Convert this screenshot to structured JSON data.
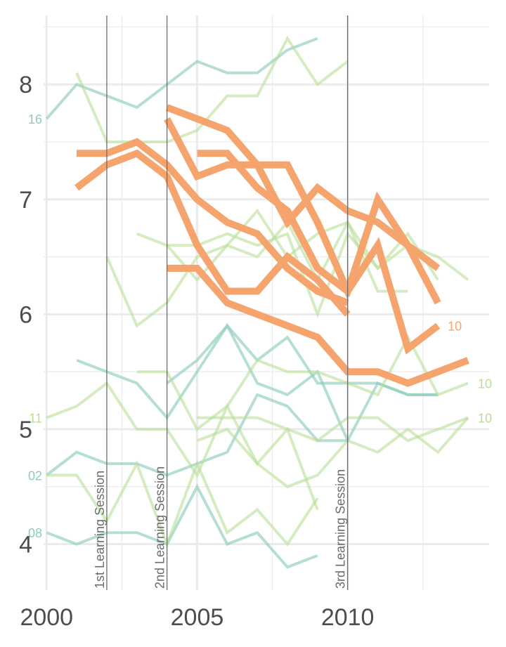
{
  "chart_data": {
    "type": "line",
    "title": "",
    "xlabel": "",
    "ylabel": "",
    "xlim": [
      1999.9,
      2014.7
    ],
    "ylim": [
      3.6,
      8.6
    ],
    "x_ticks": [
      2000,
      2005,
      2010
    ],
    "y_ticks": [
      4,
      5,
      6,
      7,
      8
    ],
    "grid": true,
    "legend": "none",
    "colors": {
      "teal": "#8ecdbd",
      "lightgreen": "#b9de96",
      "orange": "#f4a46c",
      "session_line": "#6e6e6e",
      "grid": "#ebebeb",
      "tick_text": "#4d4d4d"
    },
    "sessions": [
      {
        "x": 2002,
        "label": "1st Learning Session"
      },
      {
        "x": 2004,
        "label": "2nd Learning Session"
      },
      {
        "x": 2010,
        "label": "3rd Learning Session"
      }
    ],
    "series": [
      {
        "group": "teal",
        "x": [
          2000,
          2001,
          2002,
          2003,
          2004,
          2005,
          2006,
          2007,
          2008,
          2009
        ],
        "values": [
          7.7,
          8.0,
          7.9,
          7.8,
          8.0,
          8.2,
          8.1,
          8.1,
          8.3,
          8.4
        ],
        "end_label": "16"
      },
      {
        "group": "teal",
        "x": [
          2000,
          2001,
          2002,
          2003,
          2004,
          2005,
          2006,
          2007,
          2008,
          2009,
          2010,
          2011,
          2012,
          2013
        ],
        "values": [
          4.6,
          4.8,
          4.7,
          4.7,
          4.6,
          4.7,
          4.8,
          5.3,
          5.2,
          4.9,
          4.9,
          5.4,
          5.3,
          5.3
        ],
        "end_label": "02"
      },
      {
        "group": "teal",
        "x": [
          2000,
          2001,
          2002,
          2003,
          2004,
          2005,
          2006,
          2007,
          2008,
          2009
        ],
        "values": [
          4.1,
          4.0,
          4.1,
          4.1,
          4.0,
          4.5,
          4.0,
          4.1,
          3.8,
          3.9
        ],
        "end_label": "08"
      },
      {
        "group": "teal",
        "x": [
          2001,
          2002,
          2003,
          2004,
          2005,
          2006,
          2007,
          2008,
          2009,
          2010
        ],
        "values": [
          5.6,
          5.5,
          5.4,
          5.1,
          5.5,
          5.9,
          5.4,
          5.3,
          5.5,
          4.9
        ]
      },
      {
        "group": "teal",
        "x": [
          2004,
          2005,
          2006,
          2007,
          2008,
          2009,
          2010,
          2011,
          2012,
          2013
        ],
        "values": [
          5.4,
          5.6,
          5.9,
          5.6,
          5.8,
          5.4,
          5.4,
          5.4,
          5.3,
          5.3
        ]
      },
      {
        "group": "lightgreen",
        "x": [
          2000,
          2001,
          2002,
          2003,
          2004,
          2005,
          2006,
          2007,
          2008,
          2009
        ],
        "values": [
          5.1,
          5.2,
          5.4,
          5.0,
          5.0,
          4.6,
          5.2,
          4.7,
          5.0,
          4.3
        ],
        "end_label": "11"
      },
      {
        "group": "lightgreen",
        "x": [
          2000,
          2001,
          2002,
          2003,
          2004,
          2005,
          2006,
          2007,
          2008,
          2009
        ],
        "values": [
          4.6,
          4.6,
          4.2,
          4.7,
          4.0,
          4.7,
          4.1,
          4.3,
          4.0,
          4.4
        ]
      },
      {
        "group": "lightgreen",
        "x": [
          2001,
          2002,
          2003,
          2004,
          2005,
          2006,
          2007,
          2008,
          2009,
          2010
        ],
        "values": [
          8.1,
          7.5,
          7.5,
          7.5,
          7.6,
          7.9,
          7.9,
          8.4,
          8.0,
          8.2
        ]
      },
      {
        "group": "lightgreen",
        "x": [
          2002,
          2003,
          2004,
          2005,
          2006,
          2007,
          2008,
          2009,
          2010,
          2011,
          2012
        ],
        "values": [
          6.5,
          5.9,
          6.1,
          6.5,
          6.6,
          6.9,
          6.5,
          6.7,
          6.8,
          6.2,
          6.2
        ]
      },
      {
        "group": "lightgreen",
        "x": [
          2003,
          2004,
          2005,
          2006,
          2007,
          2008,
          2009,
          2010,
          2011,
          2012,
          2013
        ],
        "values": [
          6.7,
          6.6,
          6.6,
          6.7,
          6.6,
          6.7,
          6.0,
          6.7,
          6.4,
          6.7,
          6.3
        ]
      },
      {
        "group": "lightgreen",
        "x": [
          2003,
          2004,
          2005,
          2006,
          2007,
          2008,
          2009,
          2010,
          2011,
          2012,
          2013,
          2014
        ],
        "values": [
          5.5,
          5.5,
          5.0,
          5.2,
          5.6,
          5.5,
          5.5,
          5.4,
          5.3,
          5.8,
          5.3,
          5.4
        ],
        "end_label": "10"
      },
      {
        "group": "lightgreen",
        "x": [
          2004,
          2005,
          2006,
          2007,
          2008,
          2009,
          2010,
          2011,
          2012,
          2013,
          2014
        ],
        "values": [
          6.6,
          6.3,
          6.6,
          6.5,
          6.8,
          6.3,
          6.8,
          6.4,
          6.6,
          6.5,
          6.3
        ]
      },
      {
        "group": "lightgreen",
        "x": [
          2005,
          2006,
          2007,
          2008,
          2009,
          2010,
          2011,
          2012,
          2013,
          2014
        ],
        "values": [
          5.1,
          5.1,
          5.1,
          5.0,
          4.9,
          5.1,
          5.1,
          4.9,
          5.0,
          5.1
        ],
        "end_label": "10"
      },
      {
        "group": "lightgreen",
        "x": [
          2005,
          2006,
          2007,
          2008,
          2009,
          2010,
          2011,
          2012,
          2013,
          2014
        ],
        "values": [
          4.9,
          5.0,
          4.7,
          4.5,
          4.6,
          4.9,
          4.8,
          5.0,
          4.8,
          5.1
        ]
      },
      {
        "group": "orange",
        "x": [
          2001,
          2002,
          2003,
          2004,
          2005,
          2006,
          2007,
          2008,
          2009,
          2010
        ],
        "values": [
          7.4,
          7.4,
          7.5,
          7.3,
          7.0,
          6.8,
          6.7,
          6.4,
          6.2,
          6.1
        ]
      },
      {
        "group": "orange",
        "x": [
          2001,
          2002,
          2003,
          2004,
          2005,
          2006,
          2007,
          2008,
          2009,
          2010
        ],
        "values": [
          7.1,
          7.3,
          7.4,
          7.2,
          6.6,
          6.2,
          6.2,
          6.5,
          6.3,
          6.0
        ]
      },
      {
        "group": "orange",
        "x": [
          2004,
          2005,
          2006,
          2007,
          2008,
          2009,
          2010,
          2011,
          2012,
          2013
        ],
        "values": [
          7.8,
          7.7,
          7.6,
          7.3,
          6.8,
          7.1,
          6.9,
          6.8,
          6.6,
          6.4
        ]
      },
      {
        "group": "orange",
        "x": [
          2004,
          2005,
          2006,
          2007,
          2008,
          2009,
          2010,
          2011,
          2012,
          2013
        ],
        "values": [
          7.7,
          7.2,
          7.3,
          7.3,
          7.3,
          6.8,
          6.2,
          6.6,
          5.7,
          5.9
        ],
        "end_label": "10"
      },
      {
        "group": "orange",
        "x": [
          2005,
          2006,
          2007,
          2008,
          2009,
          2010,
          2011,
          2012,
          2013
        ],
        "values": [
          7.4,
          7.4,
          7.1,
          6.9,
          6.4,
          6.2,
          7.0,
          6.6,
          6.1
        ]
      },
      {
        "group": "orange",
        "x": [
          2004,
          2005,
          2006,
          2007,
          2008,
          2009,
          2010,
          2011,
          2012,
          2013,
          2014
        ],
        "values": [
          6.4,
          6.4,
          6.1,
          6.0,
          5.9,
          5.8,
          5.5,
          5.5,
          5.4,
          5.5,
          5.6
        ]
      }
    ]
  }
}
